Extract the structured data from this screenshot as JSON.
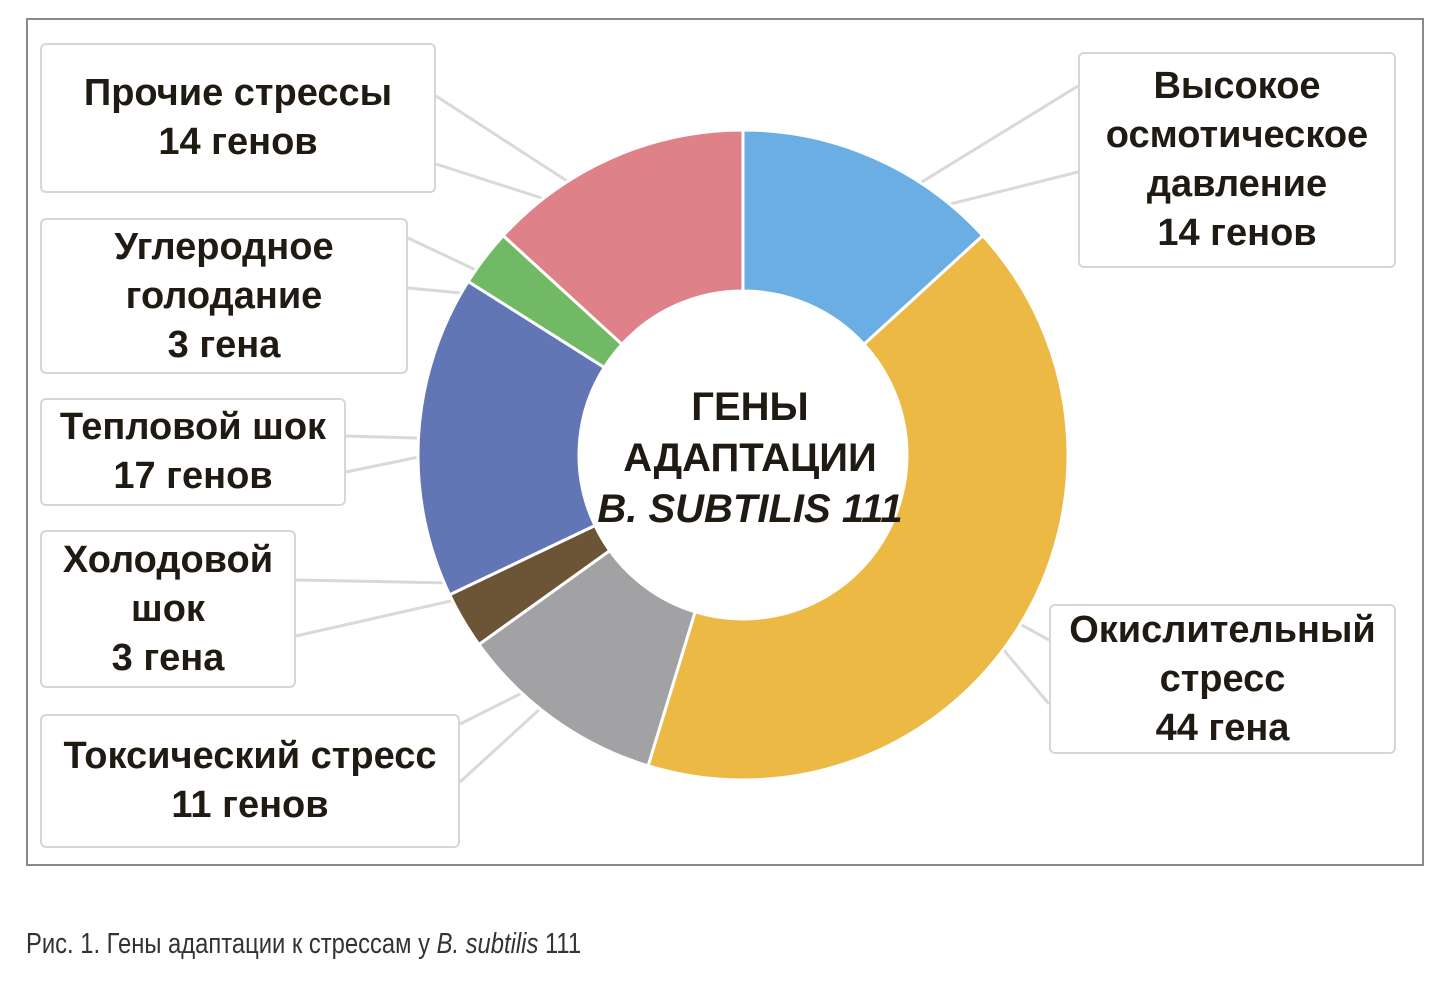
{
  "chart_data": {
    "type": "pie",
    "donut": true,
    "center_label": [
      "ГЕНЫ",
      "АДАПТАЦИИ",
      "B. SUBTILIS 111"
    ],
    "categories": [
      "Высокое осмотическое давление",
      "Окислительный стресс",
      "Токсический стресс",
      "Холодовой шок",
      "Тепловой шок",
      "Углеродное голодание",
      "Прочие стрессы"
    ],
    "values": [
      14,
      44,
      11,
      3,
      17,
      3,
      14
    ],
    "colors": [
      "#6aaee3",
      "#ecb944",
      "#a2a2a4",
      "#6b5536",
      "#6276b6",
      "#72b965",
      "#df8188"
    ],
    "slices": [
      {
        "label_lines": [
          "Высокое",
          "осмотическое",
          "давление"
        ],
        "value_text": "14 генов"
      },
      {
        "label_lines": [
          "Окислительный",
          "стресс"
        ],
        "value_text": "44 гена"
      },
      {
        "label_lines": [
          "Токсический стресс"
        ],
        "value_text": "11 генов"
      },
      {
        "label_lines": [
          "Холодовой",
          "шок"
        ],
        "value_text": "3 гена"
      },
      {
        "label_lines": [
          "Тепловой шок"
        ],
        "value_text": "17 генов"
      },
      {
        "label_lines": [
          "Углеродное",
          "голодание"
        ],
        "value_text": "3 гена"
      },
      {
        "label_lines": [
          "Прочие стрессы"
        ],
        "value_text": "14 генов"
      }
    ],
    "legend": "none"
  },
  "caption": {
    "prefix": "Рис. 1. Гены адаптации к стрессам у ",
    "species": "B. subtilis",
    "suffix": " 111"
  }
}
